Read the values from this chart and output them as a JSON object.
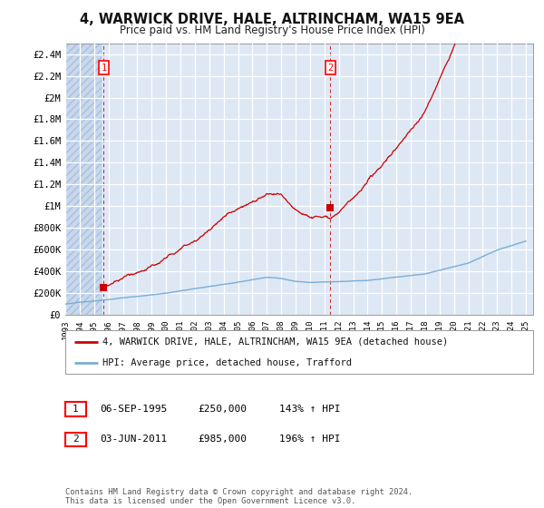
{
  "title": "4, WARWICK DRIVE, HALE, ALTRINCHAM, WA15 9EA",
  "subtitle": "Price paid vs. HM Land Registry's House Price Index (HPI)",
  "xlim_start": 1993,
  "xlim_end": 2025.5,
  "ylim_min": 0,
  "ylim_max": 2500000,
  "yticks": [
    0,
    200000,
    400000,
    600000,
    800000,
    1000000,
    1200000,
    1400000,
    1600000,
    1800000,
    2000000,
    2200000,
    2400000
  ],
  "ytick_labels": [
    "£0",
    "£200K",
    "£400K",
    "£600K",
    "£800K",
    "£1M",
    "£1.2M",
    "£1.4M",
    "£1.6M",
    "£1.8M",
    "£2M",
    "£2.2M",
    "£2.4M"
  ],
  "xticks": [
    1993,
    1994,
    1995,
    1996,
    1997,
    1998,
    1999,
    2000,
    2001,
    2002,
    2003,
    2004,
    2005,
    2006,
    2007,
    2008,
    2009,
    2010,
    2011,
    2012,
    2013,
    2014,
    2015,
    2016,
    2017,
    2018,
    2019,
    2020,
    2021,
    2022,
    2023,
    2024,
    2025
  ],
  "sale1_x": 1995.67,
  "sale1_y": 250000,
  "sale1_label": "1",
  "sale1_date": "06-SEP-1995",
  "sale1_price": "£250,000",
  "sale1_hpi": "143% ↑ HPI",
  "sale2_x": 2011.42,
  "sale2_y": 985000,
  "sale2_label": "2",
  "sale2_date": "03-JUN-2011",
  "sale2_price": "£985,000",
  "sale2_hpi": "196% ↑ HPI",
  "line_color_property": "#cc0000",
  "line_color_hpi": "#7aaed6",
  "background_color": "#dde8f4",
  "grid_color": "#ffffff",
  "hatch_color": "#c8d8ec",
  "legend_label_property": "4, WARWICK DRIVE, HALE, ALTRINCHAM, WA15 9EA (detached house)",
  "legend_label_hpi": "HPI: Average price, detached house, Trafford",
  "footer": "Contains HM Land Registry data © Crown copyright and database right 2024.\nThis data is licensed under the Open Government Licence v3.0."
}
